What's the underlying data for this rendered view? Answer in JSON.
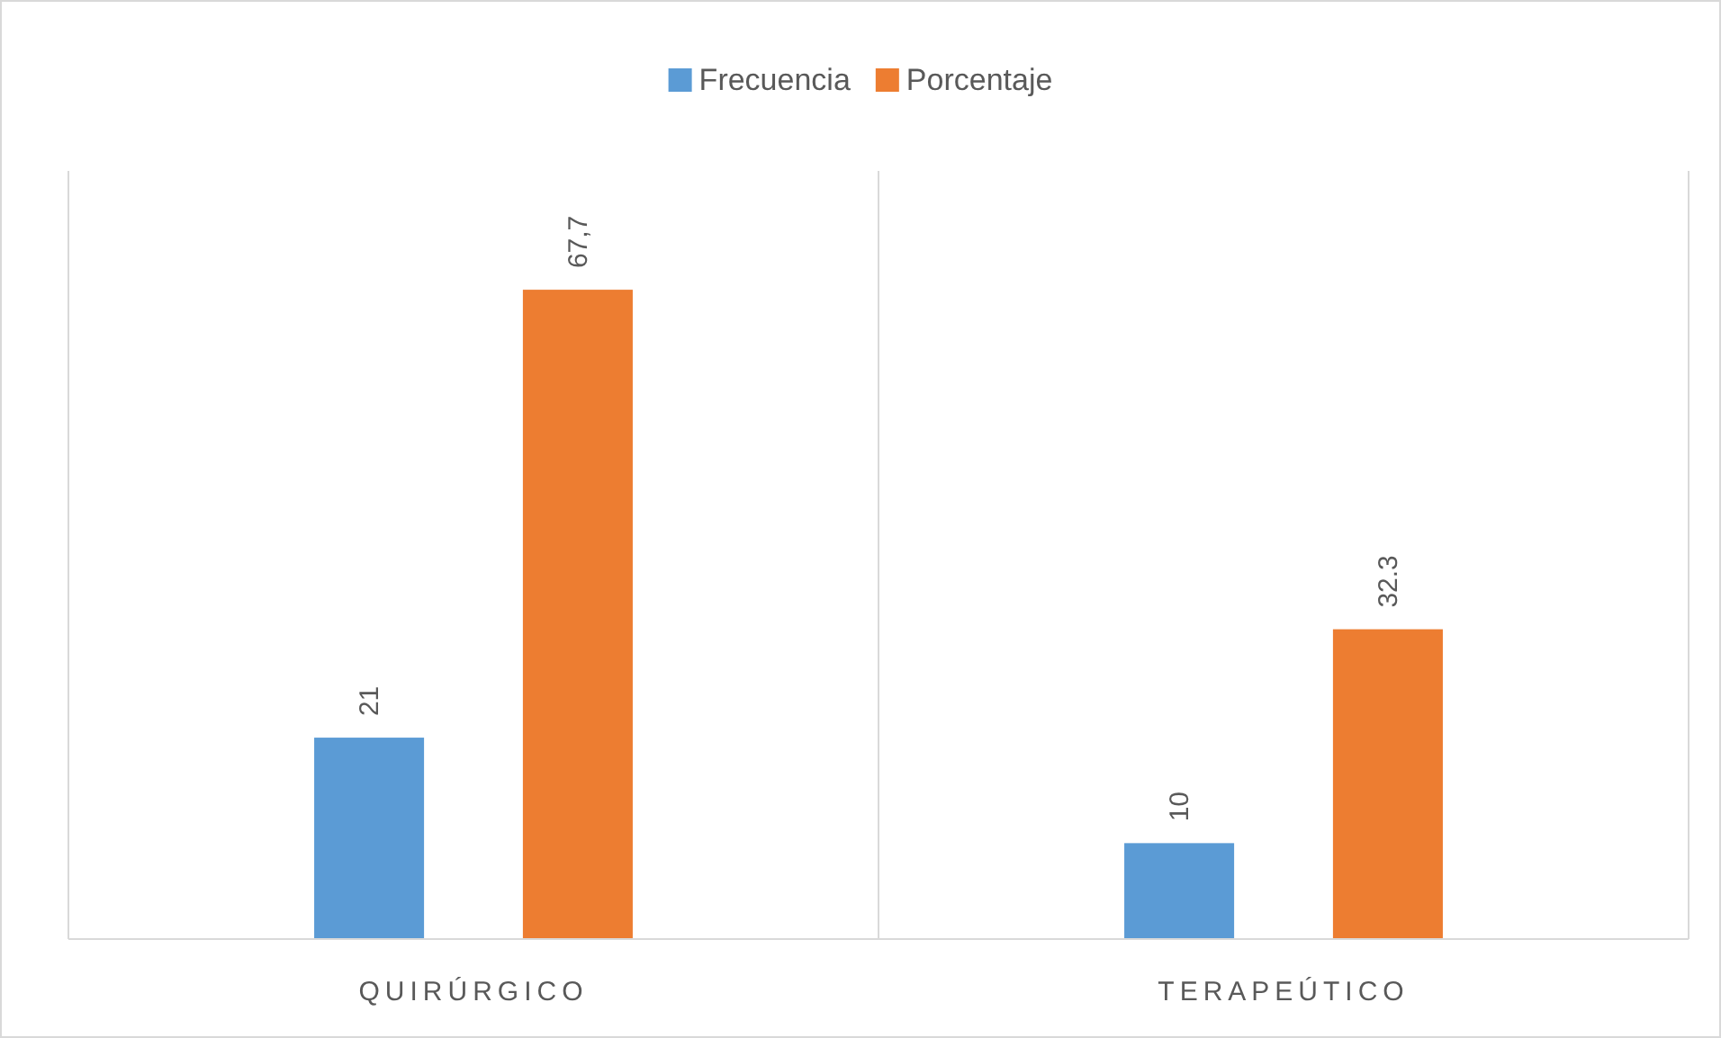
{
  "chart_data": {
    "type": "bar",
    "categories": [
      "QUIRÚRGICO",
      "TERAPEÚTICO"
    ],
    "series": [
      {
        "name": "Frecuencia",
        "color": "#5b9bd5",
        "values": [
          21,
          10
        ],
        "value_labels": [
          "21",
          "10"
        ]
      },
      {
        "name": "Porcentaje",
        "color": "#ed7d31",
        "values": [
          67.7,
          32.3
        ],
        "value_labels": [
          "67,7",
          "32.3"
        ]
      }
    ],
    "grid": "x",
    "legend": "top"
  }
}
